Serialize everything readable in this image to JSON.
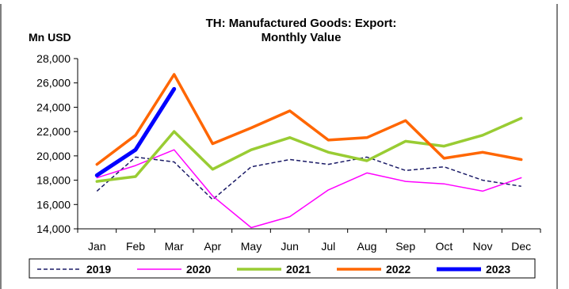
{
  "chart_data": {
    "type": "line",
    "title_line1": "TH: Manufactured Goods: Export:",
    "title_line2": "Monthly Value",
    "unit_label": "Mn USD",
    "xlabel": "",
    "ylabel": "",
    "categories": [
      "Jan",
      "Feb",
      "Mar",
      "Apr",
      "May",
      "Jun",
      "Jul",
      "Aug",
      "Sep",
      "Oct",
      "Nov",
      "Dec"
    ],
    "ylim": [
      14000,
      28000
    ],
    "yticks": [
      14000,
      16000,
      18000,
      20000,
      22000,
      24000,
      26000,
      28000
    ],
    "ytick_labels": [
      "14,000",
      "16,000",
      "18,000",
      "20,000",
      "22,000",
      "24,000",
      "26,000",
      "28,000"
    ],
    "grid": false,
    "legend_position": "bottom",
    "series": [
      {
        "name": "2019",
        "color": "#1a1a66",
        "style": "dashed",
        "values": [
          17100,
          19900,
          19500,
          16400,
          19100,
          19700,
          19300,
          19900,
          18800,
          19100,
          18000,
          17500
        ]
      },
      {
        "name": "2020",
        "color": "#ff00ff",
        "style": "thin",
        "values": [
          18200,
          19200,
          20500,
          16700,
          14100,
          15000,
          17200,
          18600,
          17900,
          17700,
          17100,
          18200
        ]
      },
      {
        "name": "2021",
        "color": "#99cc33",
        "style": "thick",
        "values": [
          17900,
          18300,
          22000,
          18900,
          20500,
          21500,
          20300,
          19600,
          21200,
          20800,
          21700,
          23100
        ]
      },
      {
        "name": "2022",
        "color": "#ff6600",
        "style": "thick",
        "values": [
          19300,
          21700,
          26700,
          21000,
          22300,
          23700,
          21300,
          21500,
          22900,
          19800,
          20300,
          19700
        ]
      },
      {
        "name": "2023",
        "color": "#0000ff",
        "style": "heavy",
        "values": [
          18400,
          20500,
          25500,
          null,
          null,
          null,
          null,
          null,
          null,
          null,
          null,
          null
        ]
      }
    ]
  }
}
